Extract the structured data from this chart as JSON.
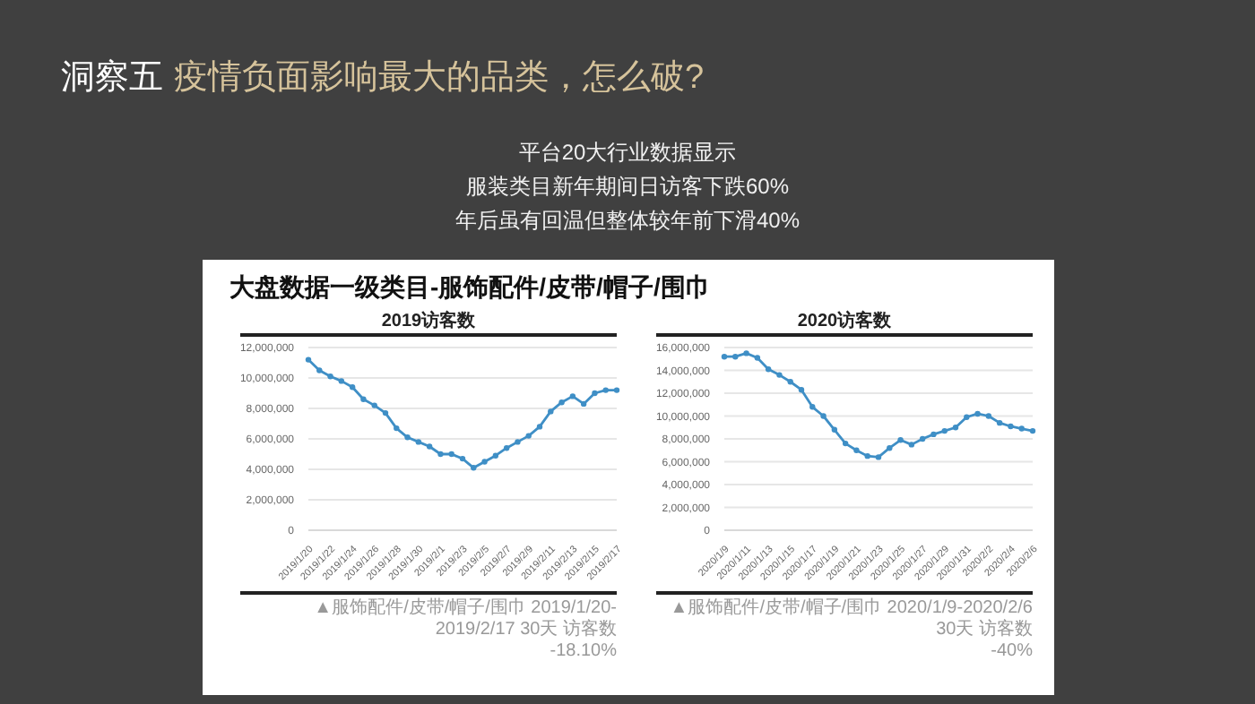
{
  "chart_data": [
    {
      "type": "other",
      "title": "洞察五",
      "subtitle": "疫情负面影响最大的品类，怎么破?",
      "annotations": [
        "平台20大行业数据显示",
        "服装类目新年期间日访客下跌60%",
        "年后虽有回温但整体较年前下滑40%",
        "大盘数据一级类目-服饰配件/皮带/帽子/围巾"
      ]
    },
    {
      "type": "line",
      "title": "2019访客数",
      "categories": [
        "2019/1/20",
        null,
        "2019/1/22",
        null,
        "2019/1/24",
        null,
        "2019/1/26",
        null,
        "2019/1/28",
        null,
        "2019/1/30",
        null,
        "2019/2/1",
        null,
        "2019/2/3",
        null,
        "2019/2/5",
        null,
        "2019/2/7",
        null,
        "2019/2/9",
        null,
        "2019/2/11",
        null,
        "2019/2/13",
        null,
        "2019/2/15",
        null,
        "2019/2/17"
      ],
      "series": [
        {
          "color": "#3f8fc6",
          "values": [
            11200000,
            10500000,
            10100000,
            9800000,
            9400000,
            8600000,
            8200000,
            7700000,
            6700000,
            6100000,
            5800000,
            5500000,
            5000000,
            5000000,
            4700000,
            4100000,
            4500000,
            4900000,
            5400000,
            5800000,
            6200000,
            6800000,
            7800000,
            8400000,
            8800000,
            8300000,
            9000000,
            9200000,
            9200000
          ]
        }
      ],
      "ylim": [
        0,
        12000000
      ],
      "yticks": [
        {
          "value": 0,
          "label": "0"
        },
        {
          "value": 2000000,
          "label": "2,000,000"
        },
        {
          "value": 4000000,
          "label": "4,000,000"
        },
        {
          "value": 6000000,
          "label": "6,000,000"
        },
        {
          "value": 8000000,
          "label": "8,000,000"
        },
        {
          "value": 10000000,
          "label": "10,000,000"
        },
        {
          "value": 12000000,
          "label": "12,000,000"
        }
      ],
      "grid": "y",
      "marker": "circle",
      "legend": false,
      "annotations": [
        "▲服饰配件/皮带/帽子/围巾 2019/1/20-2019/2/17 30天 访客数",
        "-18.10%"
      ]
    },
    {
      "type": "line",
      "title": "2020访客数",
      "categories": [
        "2020/1/9",
        null,
        "2020/1/11",
        null,
        "2020/1/13",
        null,
        "2020/1/15",
        null,
        "2020/1/17",
        null,
        "2020/1/19",
        null,
        "2020/1/21",
        null,
        "2020/1/23",
        null,
        "2020/1/25",
        null,
        "2020/1/27",
        null,
        "2020/1/29",
        null,
        "2020/1/31",
        null,
        "2020/2/2",
        null,
        "2020/2/4",
        null,
        "2020/2/6"
      ],
      "series": [
        {
          "color": "#3f8fc6",
          "values": [
            15200000,
            15200000,
            15500000,
            15100000,
            14100000,
            13600000,
            13000000,
            12300000,
            10800000,
            10000000,
            8800000,
            7600000,
            7000000,
            6500000,
            6400000,
            7200000,
            7900000,
            7500000,
            8000000,
            8400000,
            8700000,
            9000000,
            9900000,
            10200000,
            10000000,
            9400000,
            9100000,
            8900000,
            8700000
          ]
        }
      ],
      "ylim": [
        0,
        16000000
      ],
      "yticks": [
        {
          "value": 0,
          "label": "0"
        },
        {
          "value": 2000000,
          "label": "2,000,000"
        },
        {
          "value": 4000000,
          "label": "4,000,000"
        },
        {
          "value": 6000000,
          "label": "6,000,000"
        },
        {
          "value": 8000000,
          "label": "8,000,000"
        },
        {
          "value": 10000000,
          "label": "10,000,000"
        },
        {
          "value": 12000000,
          "label": "12,000,000"
        },
        {
          "value": 14000000,
          "label": "14,000,000"
        },
        {
          "value": 16000000,
          "label": "16,000,000"
        }
      ],
      "grid": "y",
      "marker": "circle",
      "legend": false,
      "annotations": [
        "▲服饰配件/皮带/帽子/围巾 2020/1/9-2020/2/6 30天 访客数",
        "-40%"
      ]
    }
  ]
}
